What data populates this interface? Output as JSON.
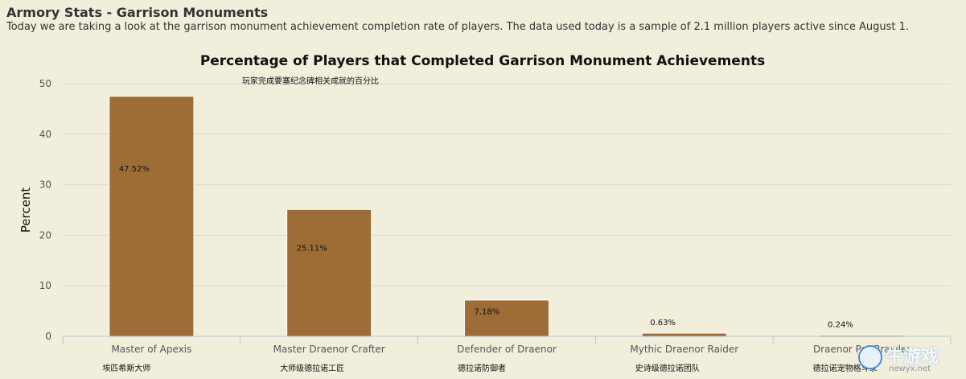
{
  "header": {
    "title": "Armory Stats - Garrison Monuments",
    "intro": "Today we are taking a look at the garrison monument achievement completion rate of players. The data used today is a sample of 2.1 million players active since August 1."
  },
  "chart_data": {
    "type": "bar",
    "title": "Percentage of Players that Completed Garrison Monument Achievements",
    "subtitle": "玩家完成要塞纪念碑相关成就的百分比",
    "xlabel": "",
    "ylabel": "Percent",
    "ylim": [
      0,
      50
    ],
    "yticks": [
      0,
      10,
      20,
      30,
      40,
      50
    ],
    "grid": true,
    "legend": "none",
    "categories": [
      "Master of Apexis",
      "Master Draenor Crafter",
      "Defender of Draenor",
      "Mythic Draenor Raider",
      "Draenor Pet Brawler"
    ],
    "categories_cn": [
      "埃匹希斯大师",
      "大师级德拉诺工匠",
      "德拉诺防御者",
      "史诗级德拉诺团队",
      "德拉诺宠物格斗家"
    ],
    "values": [
      47.52,
      25.11,
      7.18,
      0.63,
      0.24
    ],
    "data_labels": [
      "47.52%",
      "25.11%",
      "7.18%",
      "0.63%",
      "0.24%"
    ],
    "bar_color": "#9e6d37"
  },
  "watermark": {
    "text": "牛游戏",
    "url": "newyx.net"
  }
}
